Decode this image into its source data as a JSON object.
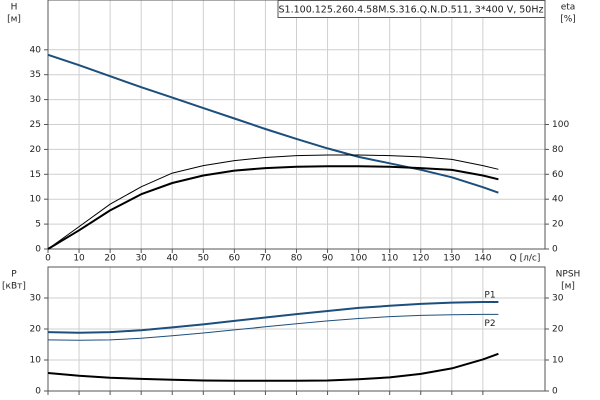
{
  "chart_data": [
    {
      "type": "line",
      "title": "S1.100.125.260.4.58M.S.316.Q.N.D.511, 3*400 V, 50Hz",
      "xlabel": "Q [л/с]",
      "ylabel": "H",
      "yunit": "[м]",
      "y2label": "eta",
      "y2unit": "[%]",
      "x": [
        0,
        10,
        20,
        30,
        40,
        50,
        60,
        70,
        80,
        90,
        100,
        110,
        120,
        130,
        140,
        145
      ],
      "xlim": [
        0,
        160
      ],
      "xticks": [
        0,
        10,
        20,
        30,
        40,
        50,
        60,
        70,
        80,
        90,
        100,
        110,
        120,
        130,
        140
      ],
      "xtick_labels": true,
      "ylim": [
        0,
        50
      ],
      "yticks": [
        0,
        5,
        10,
        15,
        20,
        25,
        30,
        35,
        40
      ],
      "y2lim": [
        0,
        200
      ],
      "y2ticks": [
        0,
        20,
        40,
        60,
        80,
        100
      ],
      "grid": true,
      "series": [
        {
          "color": "#1d4f7c",
          "width": 2,
          "values": [
            39,
            36.9,
            34.7,
            32.5,
            30.4,
            28.3,
            26.2,
            24.1,
            22.1,
            20.2,
            18.5,
            17.2,
            15.9,
            14.4,
            12.4,
            11.3
          ]
        },
        {
          "color": "#000000",
          "width": 2,
          "axis": "y2",
          "values": [
            0,
            15,
            31,
            44,
            53,
            59,
            63,
            65,
            66,
            66.5,
            66.5,
            66,
            65,
            63.5,
            59,
            56
          ]
        },
        {
          "color": "#000000",
          "width": 1,
          "axis": "y2",
          "values": [
            0,
            18,
            36,
            50,
            61,
            67,
            71,
            73.5,
            75,
            75.5,
            75.5,
            75,
            74,
            72,
            67,
            64
          ]
        }
      ]
    },
    {
      "type": "line",
      "ylabel": "P",
      "yunit": "[кВт]",
      "y2label": "NPSH",
      "y2unit": "[м]",
      "x": [
        0,
        10,
        20,
        30,
        40,
        50,
        60,
        70,
        80,
        90,
        100,
        110,
        120,
        130,
        140,
        145
      ],
      "xlim": [
        0,
        160
      ],
      "xticks": [
        0,
        10,
        20,
        30,
        40,
        50,
        60,
        70,
        80,
        90,
        100,
        110,
        120,
        130,
        140
      ],
      "xtick_labels": false,
      "ylim": [
        0,
        40
      ],
      "yticks": [
        0,
        10,
        20,
        30
      ],
      "y2lim": [
        0,
        40
      ],
      "y2ticks": [
        0,
        10,
        20,
        30
      ],
      "grid": true,
      "series": [
        {
          "name": "P1",
          "color": "#1d4f7c",
          "width": 2,
          "values": [
            19,
            18.8,
            19,
            19.6,
            20.5,
            21.5,
            22.6,
            23.7,
            24.8,
            25.8,
            26.8,
            27.5,
            28.1,
            28.5,
            28.7,
            28.7
          ]
        },
        {
          "name": "P2",
          "color": "#1d4f7c",
          "width": 1,
          "values": [
            16.5,
            16.4,
            16.5,
            17,
            17.8,
            18.7,
            19.7,
            20.7,
            21.7,
            22.6,
            23.4,
            24,
            24.4,
            24.6,
            24.7,
            24.7
          ]
        },
        {
          "color": "#000000",
          "width": 2,
          "axis": "y2",
          "values": [
            5.8,
            4.9,
            4.3,
            3.9,
            3.6,
            3.4,
            3.3,
            3.3,
            3.3,
            3.4,
            3.8,
            4.4,
            5.5,
            7.3,
            10.2,
            12
          ]
        }
      ]
    }
  ]
}
